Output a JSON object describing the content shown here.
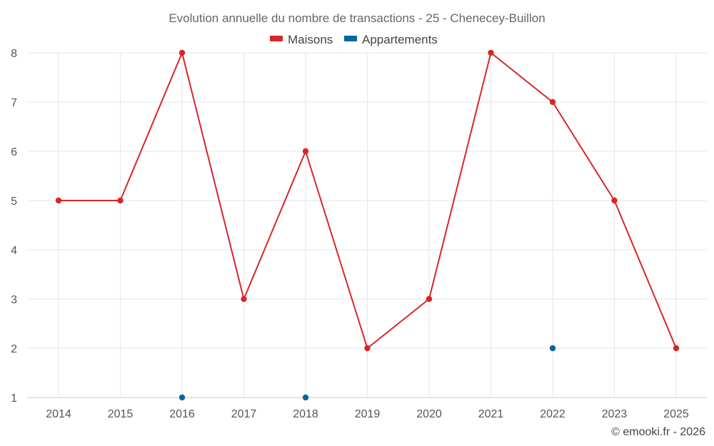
{
  "chart_data": {
    "type": "line",
    "title": "Evolution annuelle du nombre de transactions - 25 - Chenecey-Buillon",
    "xlabel": "",
    "ylabel": "",
    "categories": [
      "2014",
      "2015",
      "2016",
      "2017",
      "2018",
      "2019",
      "2020",
      "2021",
      "2022",
      "2023",
      "2025"
    ],
    "ylim": [
      1,
      8
    ],
    "yticks": [
      1,
      2,
      3,
      4,
      5,
      6,
      7,
      8
    ],
    "grid": true,
    "legend_position": "top-center",
    "series": [
      {
        "name": "Maisons",
        "color": "#d62728",
        "values": [
          5,
          5,
          8,
          3,
          6,
          2,
          3,
          8,
          7,
          5,
          2
        ],
        "line": true
      },
      {
        "name": "Appartements",
        "color": "#0066a1",
        "values": [
          null,
          null,
          1,
          null,
          1,
          null,
          null,
          null,
          2,
          null,
          null
        ],
        "line": false
      }
    ]
  },
  "credit": "© emooki.fr - 2026"
}
